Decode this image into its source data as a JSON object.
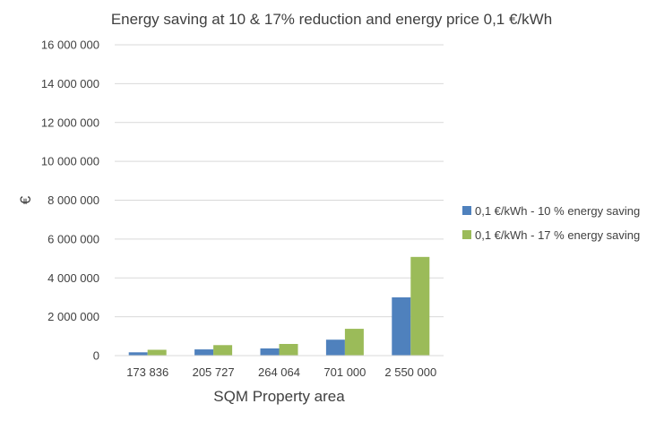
{
  "chart_data": {
    "type": "bar",
    "title": "Energy saving at 10 & 17% reduction and energy price 0,1 €/kWh",
    "xlabel": "SQM Property area",
    "ylabel": "€",
    "categories": [
      "173 836",
      "205 727",
      "264 064",
      "701 000",
      "2 550 000"
    ],
    "series": [
      {
        "name": "0,1 €/kWh - 10 % energy saving",
        "color": "#4f81bd",
        "values": [
          170000,
          320000,
          370000,
          820000,
          3000000
        ]
      },
      {
        "name": "0,1 €/kWh - 17 % energy saving",
        "color": "#9bbb59",
        "values": [
          300000,
          540000,
          600000,
          1380000,
          5080000
        ]
      }
    ],
    "ylim": [
      0,
      16000000
    ],
    "yticks": [
      0,
      2000000,
      4000000,
      6000000,
      8000000,
      10000000,
      12000000,
      14000000,
      16000000
    ],
    "ytick_labels": [
      "0",
      "2 000 000",
      "4 000 000",
      "6 000 000",
      "8 000 000",
      "10 000 000",
      "12 000 000",
      "14 000 000",
      "16 000 000"
    ],
    "grid": true,
    "gridline_color": "#d9d9d9",
    "legend_position": "right"
  }
}
